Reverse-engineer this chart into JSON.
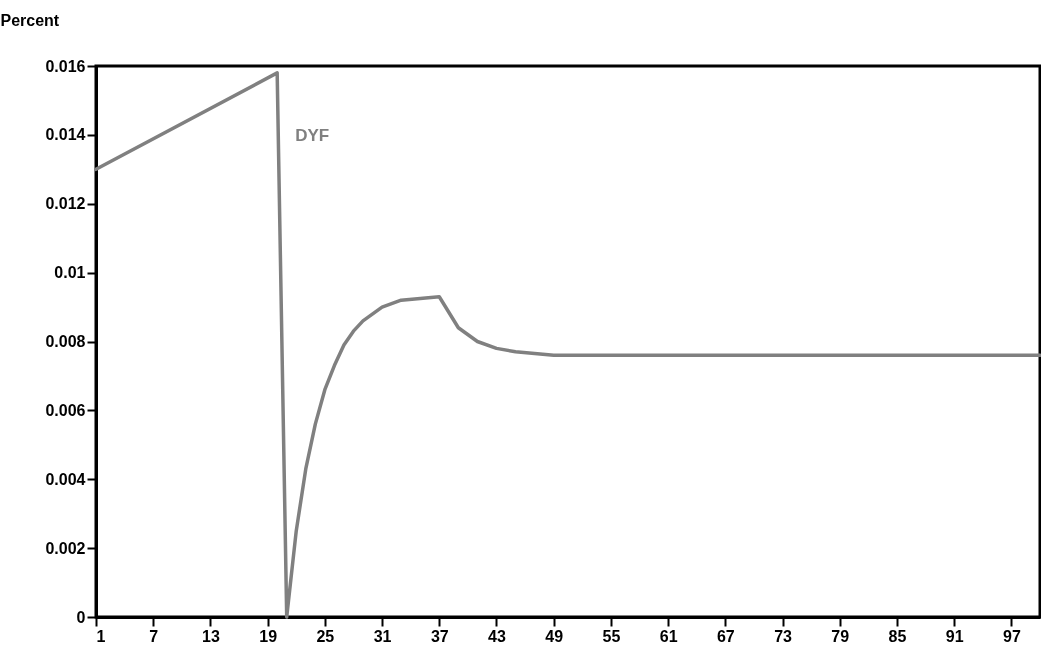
{
  "chart_data": {
    "type": "line",
    "ylabel": "Percent",
    "x": [
      1,
      20,
      21,
      22,
      23,
      24,
      25,
      26,
      27,
      28,
      29,
      31,
      33,
      35,
      37,
      39,
      41,
      43,
      45,
      47,
      49,
      55,
      61,
      67,
      73,
      79,
      85,
      91,
      97,
      100
    ],
    "series": [
      {
        "name": "DYF",
        "color": "#808080",
        "values": [
          0.013,
          0.0158,
          0,
          0.0025,
          0.0043,
          0.0056,
          0.0066,
          0.0073,
          0.0079,
          0.0083,
          0.0086,
          0.009,
          0.0092,
          0.00925,
          0.0093,
          0.0084,
          0.008,
          0.0078,
          0.0077,
          0.00765,
          0.0076,
          0.0076,
          0.0076,
          0.0076,
          0.0076,
          0.0076,
          0.0076,
          0.0076,
          0.0076,
          0.0076
        ]
      }
    ],
    "xlim": [
      1,
      100
    ],
    "xticks": [
      1,
      7,
      13,
      19,
      25,
      31,
      37,
      43,
      49,
      55,
      61,
      67,
      73,
      79,
      85,
      91,
      97
    ],
    "ylim": [
      0,
      0.016
    ],
    "yticks": [
      0,
      0.002,
      0.004,
      0.006,
      0.008,
      0.01,
      0.012,
      0.014,
      0.016
    ],
    "grid": false,
    "legend": false,
    "marker": "none",
    "line_style": "solid"
  }
}
